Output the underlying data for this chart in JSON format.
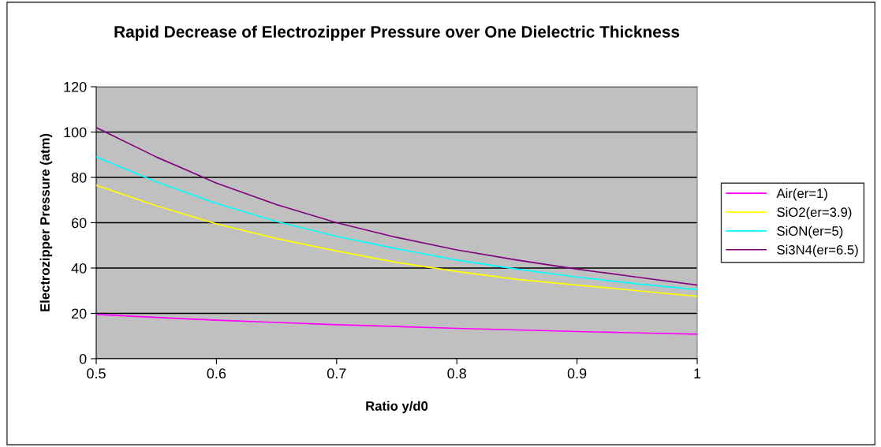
{
  "chart_data": {
    "type": "line",
    "title": "Rapid Decrease of Electrozipper Pressure over One Dielectric Thickness",
    "xlabel": "Ratio y/d0",
    "ylabel": "Electrozipper Pressure (atm)",
    "x": [
      0.5,
      0.55,
      0.6,
      0.65,
      0.7,
      0.75,
      0.8,
      0.85,
      0.9,
      0.95,
      1
    ],
    "series": [
      {
        "name": "Air(er=1)",
        "color": "#ff00ff",
        "values": [
          19.5,
          18.2,
          17,
          16,
          15,
          14.2,
          13.4,
          12.7,
          12,
          11.4,
          10.8
        ]
      },
      {
        "name": "SiO2(er=3.9)",
        "color": "#ffff00",
        "values": [
          76.5,
          67.5,
          59.5,
          53,
          47.5,
          42.5,
          38.5,
          35,
          32.5,
          30,
          27.5
        ]
      },
      {
        "name": "SiON(er=5)",
        "color": "#00ffff",
        "values": [
          89,
          78,
          68.5,
          60.5,
          54,
          48.5,
          43.5,
          39.5,
          36,
          33,
          30.5
        ]
      },
      {
        "name": "Si3N4(er=6.5)",
        "color": "#800080",
        "values": [
          102,
          89,
          77.5,
          68,
          60,
          53.5,
          48,
          43.5,
          39.5,
          36,
          32.5
        ]
      }
    ],
    "xlim": [
      0.5,
      1
    ],
    "xticks": [
      0.5,
      0.6,
      0.7,
      0.8,
      0.9,
      1
    ],
    "ylim": [
      0,
      120
    ],
    "yticks": [
      0,
      20,
      40,
      60,
      80,
      100,
      120
    ],
    "grid": "y",
    "legend": "right",
    "marker": "none",
    "line_style": "solid"
  }
}
